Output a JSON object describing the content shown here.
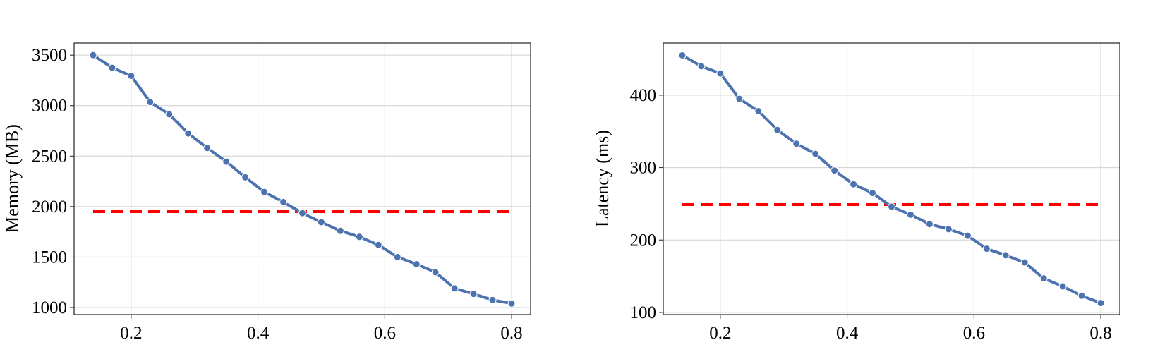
{
  "chart_data": [
    {
      "type": "line",
      "title": "",
      "xlabel": "",
      "ylabel": "Memory (MB)",
      "xlim": [
        0.11,
        0.83
      ],
      "ylim": [
        930,
        3620
      ],
      "x_ticks": [
        0.2,
        0.4,
        0.6,
        0.8
      ],
      "x_tick_labels": [
        "0.2",
        "0.4",
        "0.6",
        "0.8"
      ],
      "y_ticks": [
        1000,
        1500,
        2000,
        2500,
        3000,
        3500
      ],
      "y_tick_labels": [
        "1000",
        "1500",
        "2000",
        "2500",
        "3000",
        "3500"
      ],
      "grid": true,
      "series": [
        {
          "x": [
            0.14,
            0.17,
            0.2,
            0.23,
            0.26,
            0.29,
            0.32,
            0.35,
            0.38,
            0.41,
            0.44,
            0.47,
            0.5,
            0.53,
            0.56,
            0.59,
            0.62,
            0.65,
            0.68,
            0.71,
            0.74,
            0.77,
            0.8
          ],
          "y": [
            3500,
            3375,
            3295,
            3035,
            2915,
            2725,
            2580,
            2445,
            2290,
            2145,
            2045,
            1935,
            1845,
            1760,
            1700,
            1620,
            1500,
            1430,
            1350,
            1190,
            1135,
            1075,
            1040
          ],
          "color": "#4c72b0",
          "marker": "circle"
        }
      ],
      "reference_line": {
        "y": 1950,
        "x_start": 0.14,
        "x_end": 0.8,
        "color": "#ff0000",
        "style": "dashed"
      }
    },
    {
      "type": "line",
      "title": "",
      "xlabel": "",
      "ylabel": "Latency (ms)",
      "xlim": [
        0.11,
        0.83
      ],
      "ylim": [
        97,
        472
      ],
      "x_ticks": [
        0.2,
        0.4,
        0.6,
        0.8
      ],
      "x_tick_labels": [
        "0.2",
        "0.4",
        "0.6",
        "0.8"
      ],
      "y_ticks": [
        100,
        200,
        300,
        400
      ],
      "y_tick_labels": [
        "100",
        "200",
        "300",
        "400"
      ],
      "grid": true,
      "series": [
        {
          "x": [
            0.14,
            0.17,
            0.2,
            0.23,
            0.26,
            0.29,
            0.32,
            0.35,
            0.38,
            0.41,
            0.44,
            0.47,
            0.5,
            0.53,
            0.56,
            0.59,
            0.62,
            0.65,
            0.68,
            0.71,
            0.74,
            0.77,
            0.8
          ],
          "y": [
            455,
            440,
            430,
            395,
            378,
            352,
            333,
            319,
            296,
            277,
            265,
            246,
            235,
            222,
            215,
            206,
            188,
            179,
            169,
            147,
            136,
            123,
            113
          ],
          "color": "#4c72b0",
          "marker": "circle"
        }
      ],
      "reference_line": {
        "y": 249,
        "x_start": 0.14,
        "x_end": 0.8,
        "color": "#ff0000",
        "style": "dashed"
      }
    }
  ]
}
